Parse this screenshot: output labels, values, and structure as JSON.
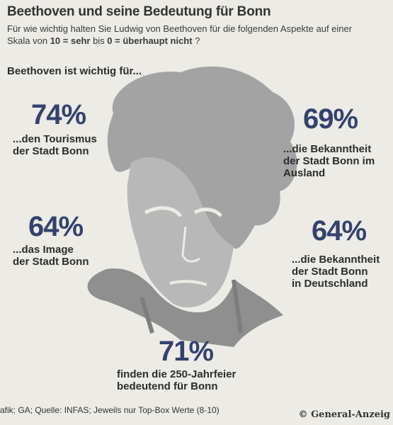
{
  "title": "Beethoven und seine Bedeutung für Bonn",
  "subtitle": {
    "part1": "Für wie wichtig halten Sie Ludwig von Beethoven für die folgenden Aspekte auf einer Skala von ",
    "bold1": "10 = sehr",
    "part2": " bis ",
    "bold2": "0 = überhaupt nicht",
    "part3": "  ?"
  },
  "lead": "Beethoven ist wichtig für...",
  "source": "afik: GA; Quelle: INFAS; Jeweils nur Top-Box Werte (8-10)",
  "copyright": "© General-Anzeig",
  "colors": {
    "percent": "#34426d",
    "portrait": "#9c9c9c",
    "background": "#ecebe6"
  },
  "chart_data": {
    "type": "table",
    "unit": "%",
    "categories": [
      "...den Tourismus der Stadt Bonn",
      "...die Bekanntheit der Stadt Bonn im Ausland",
      "...das Image der Stadt Bonn",
      "...die Bekanntheit der Stadt Bonn in Deutschland",
      "finden die 250-Jahrfeier bedeutend für Bonn"
    ],
    "values": [
      74,
      69,
      64,
      64,
      71
    ],
    "items": [
      {
        "percent_text": "74%",
        "label": "...den Tourismus\nder Stadt Bonn"
      },
      {
        "percent_text": "69%",
        "label": "...die Bekanntheit\nder Stadt Bonn im\nAusland"
      },
      {
        "percent_text": "64%",
        "label": "...das Image\nder Stadt Bonn"
      },
      {
        "percent_text": "64%",
        "label": "...die Bekanntheit\nder Stadt Bonn\nin Deutschland"
      },
      {
        "percent_text": "71%",
        "label": "finden die 250-Jahrfeier\nbedeutend für Bonn"
      }
    ]
  }
}
